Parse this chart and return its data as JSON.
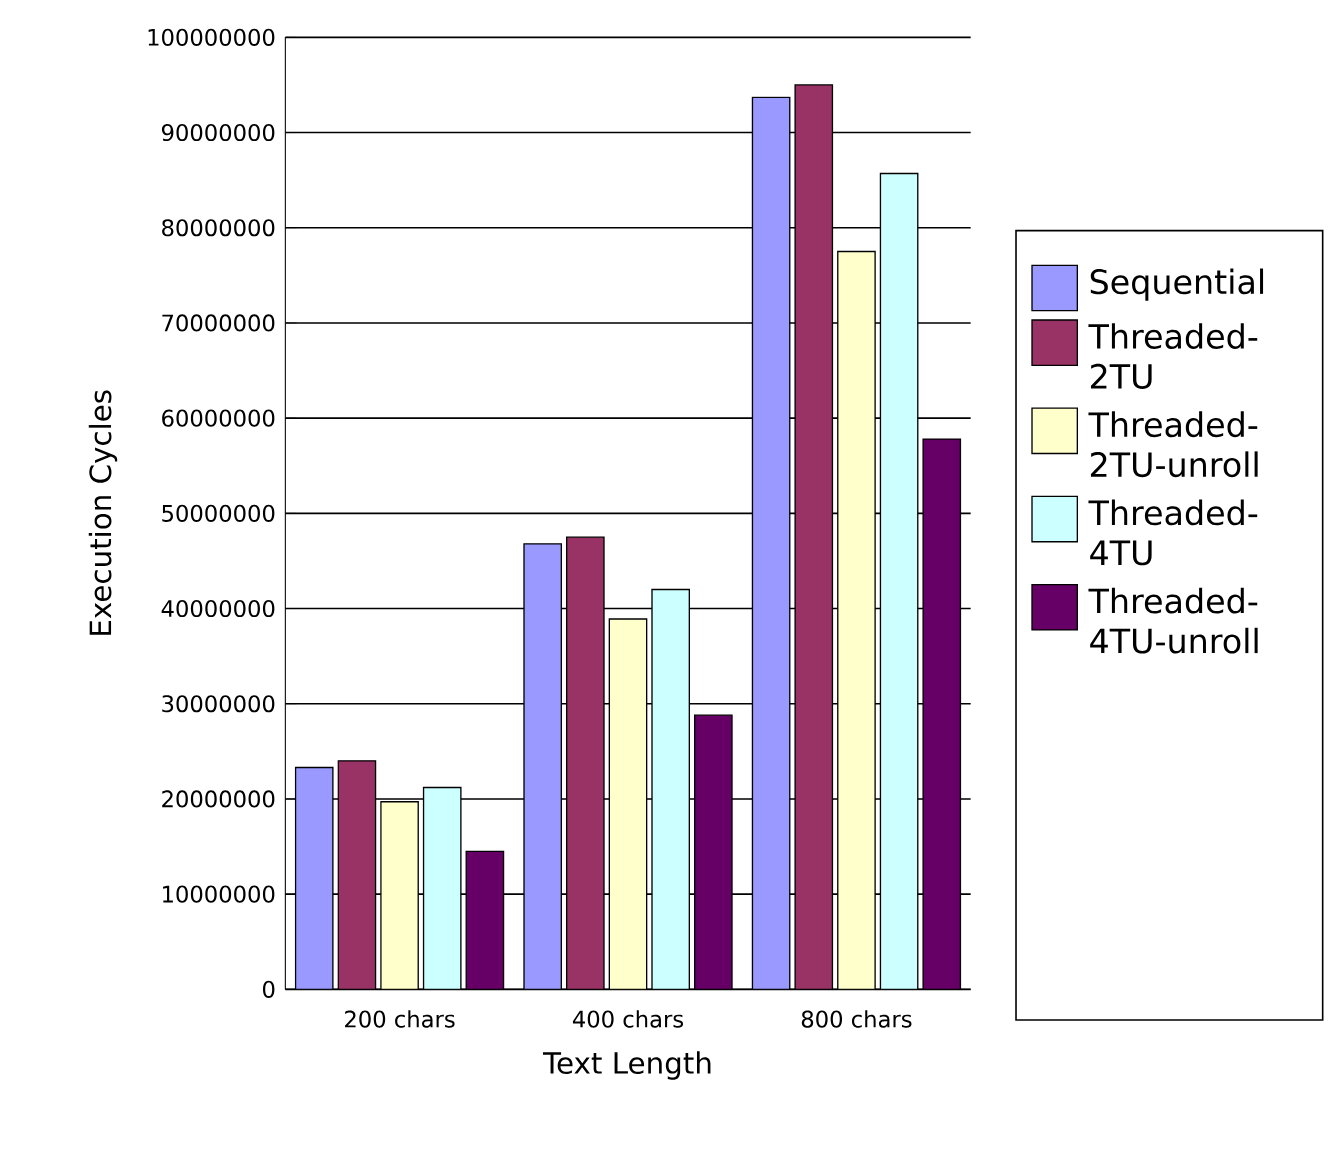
{
  "chart_data": {
    "type": "bar",
    "xlabel": "Text Length",
    "ylabel": "Execution Cycles",
    "categories": [
      "200 chars",
      "400 chars",
      "800 chars"
    ],
    "series": [
      {
        "name": "Sequential",
        "color": "#9999ff",
        "values": [
          23300000,
          46800000,
          93700000
        ]
      },
      {
        "name": "Threaded-2TU",
        "color": "#993366",
        "values": [
          24000000,
          47500000,
          95000000
        ]
      },
      {
        "name": "Threaded-2TU-unroll",
        "color": "#ffffcc",
        "values": [
          19700000,
          38900000,
          77500000
        ]
      },
      {
        "name": "Threaded-4TU",
        "color": "#ccffff",
        "values": [
          21200000,
          42000000,
          85700000
        ]
      },
      {
        "name": "Threaded-4TU-unroll",
        "color": "#660066",
        "values": [
          14500000,
          28800000,
          57800000
        ]
      }
    ],
    "ylim": [
      0,
      100000000
    ],
    "yticks": [
      0,
      10000000,
      20000000,
      30000000,
      40000000,
      50000000,
      60000000,
      70000000,
      80000000,
      90000000,
      100000000
    ],
    "grid": "y",
    "legend": "right"
  }
}
